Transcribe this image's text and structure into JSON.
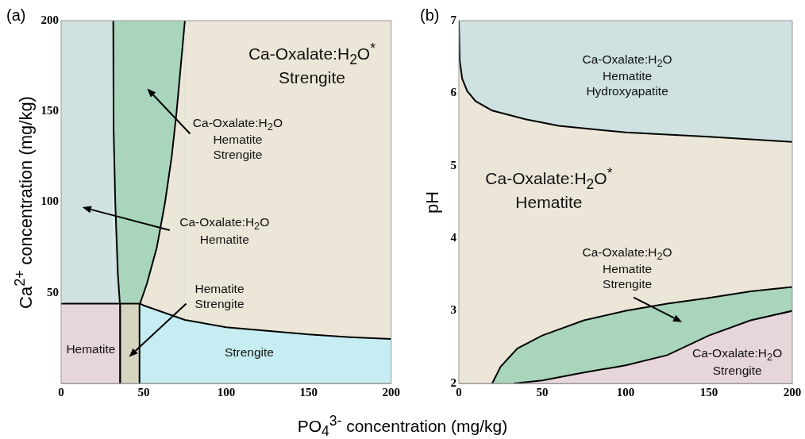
{
  "chart_data": [
    {
      "type": "area",
      "title": "(a)",
      "xlabel": "PO$_{4}$$^{3-}$ concentration (mg/kg)",
      "ylabel": "Ca$^{2+}$ concentration (mg/kg)",
      "xlim": [
        0,
        200
      ],
      "ylim": [
        0,
        200
      ],
      "xticks": [
        0,
        50,
        100,
        150,
        200
      ],
      "yticks": [
        50,
        100,
        150,
        200
      ],
      "grid": false,
      "legend": false,
      "series": [
        {
          "color": "#a8d5bb",
          "x": [
            31.6,
            75
          ],
          "values": [
            200,
            200
          ]
        },
        {
          "color": "#ebe6d8",
          "x": [
            47.8,
            52,
            58,
            63,
            67,
            70,
            73,
            75,
            200
          ],
          "values": [
            44,
            55,
            75,
            100,
            125,
            150,
            180,
            200,
            200
          ]
        },
        {
          "color": "#c6eef2",
          "x": [
            47.8,
            50,
            75,
            100,
            125,
            150,
            175,
            200
          ],
          "values": [
            44,
            43,
            35,
            31,
            29,
            27,
            25.5,
            24.5
          ]
        },
        {
          "color": "#cfe1e1",
          "x": [
            0,
            31.6,
            31.8,
            32.8,
            34.4,
            35.6
          ],
          "values": [
            200,
            200,
            140,
            100,
            60,
            44
          ]
        },
        {
          "color": "#e6d6da",
          "x": [
            0,
            35.8,
            35.8
          ],
          "values": [
            44,
            44,
            0
          ]
        },
        {
          "color": "#d6d6c0",
          "x": [
            35.8,
            35.8,
            47.5,
            47.5
          ],
          "values": [
            0,
            44,
            44,
            0
          ]
        }
      ],
      "annotations": [
        "Ca-Oxalate:H$_{2}$O$^{*}$\nStrengite",
        "Ca-Oxalate:H$_{2}$O\nHematite\nStrengite",
        "Ca-Oxalate:H$_{2}$O\nHematite",
        "Hematite\nStrengite",
        "Hematite",
        "Strengite"
      ]
    },
    {
      "type": "area",
      "title": "(b)",
      "ylabel": "pH",
      "xlim": [
        0,
        200
      ],
      "ylim": [
        2,
        7
      ],
      "xticks": [
        0,
        50,
        100,
        150,
        200
      ],
      "yticks": [
        2,
        3,
        4,
        5,
        6,
        7
      ],
      "grid": false,
      "legend": false,
      "series": [
        {
          "color": "#ebe6d8",
          "x": [
            0,
            0.5,
            2,
            5,
            10,
            20,
            40,
            60,
            100,
            150,
            200
          ],
          "values": [
            7,
            6.45,
            6.2,
            6.03,
            5.89,
            5.76,
            5.64,
            5.55,
            5.46,
            5.4,
            5.33
          ]
        },
        {
          "color": "#a8d5bb",
          "x": [
            20,
            25,
            35,
            50,
            75,
            100,
            125,
            150,
            175,
            200
          ],
          "values": [
            2,
            2.23,
            2.48,
            2.66,
            2.87,
            3,
            3.1,
            3.18,
            3.27,
            3.33
          ]
        },
        {
          "color": "#e6d6da",
          "x": [
            33,
            50,
            75,
            100,
            125,
            150,
            175,
            200
          ],
          "values": [
            2,
            2.04,
            2.15,
            2.25,
            2.39,
            2.66,
            2.87,
            3
          ]
        }
      ],
      "annotations": [
        "Ca-Oxalate:H$_{2}$O\nHematite\nHydroxyapatite",
        "Ca-Oxalate:H$_{2}$O$^{*}$\nHematite",
        "Ca-Oxalate:H$_{2}$O\nHematite\nStrengite",
        "Ca-Oxalate:H$_{2}$O\nStrengite"
      ]
    }
  ]
}
